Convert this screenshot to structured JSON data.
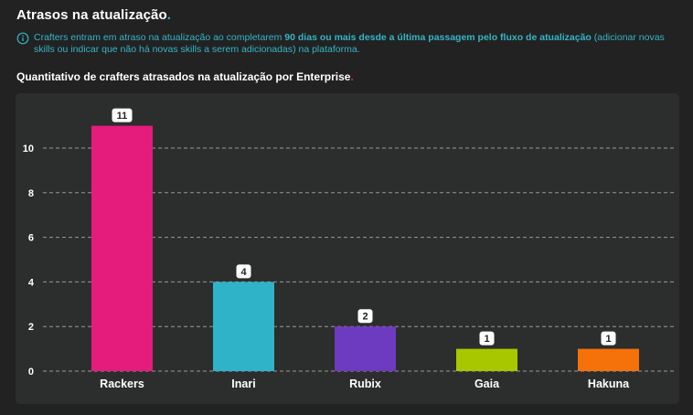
{
  "header": {
    "title": "Atrasos na atualização",
    "title_dot": ".",
    "info_prefix": "Crafters entram em atraso na atualização ao completarem ",
    "info_bold": "90 dias ou mais desde a última passagem pelo fluxo de atualização",
    "info_suffix": " (adicionar novas skills ou indicar que não há novas skills a serem adicionadas) na plataforma.",
    "info_icon": "info-icon"
  },
  "section": {
    "subtitle": "Quantitativo de crafters atrasados na atualização por Enterprise",
    "subtitle_dot": "."
  },
  "colors": {
    "accent_cyan": "#2bb5c8",
    "accent_pink": "#e0206f"
  },
  "chart_data": {
    "type": "bar",
    "title": "Quantitativo de crafters atrasados na atualização por Enterprise",
    "xlabel": "",
    "ylabel": "",
    "categories": [
      "Rackers",
      "Inari",
      "Rubix",
      "Gaia",
      "Hakuna"
    ],
    "values": [
      11,
      4,
      2,
      1,
      1
    ],
    "colors": [
      "#e51c7c",
      "#2fb3c8",
      "#6d3bbf",
      "#a8c700",
      "#f5720a"
    ],
    "ylim": [
      0,
      11
    ],
    "yticks": [
      0,
      2,
      4,
      6,
      8,
      10
    ],
    "grid": true,
    "data_labels": [
      "11",
      "4",
      "2",
      "1",
      "1"
    ]
  }
}
